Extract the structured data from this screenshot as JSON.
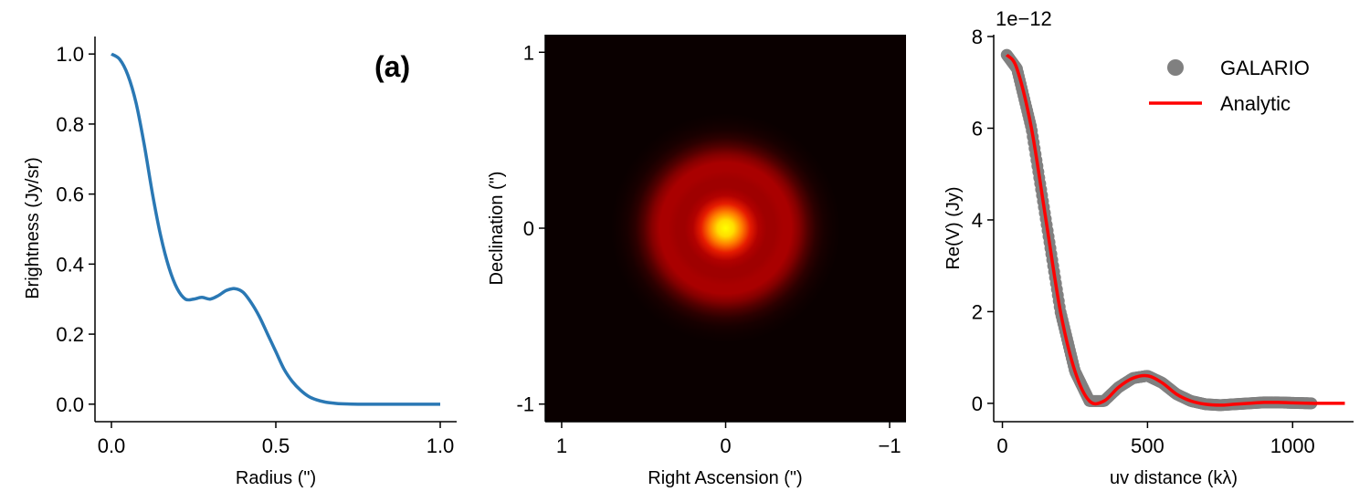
{
  "chart_data": [
    {
      "type": "line",
      "annotation": "(a)",
      "xlabel": "Radius (\")",
      "ylabel": "Brightness (Jy/sr)",
      "xlim": [
        -0.05,
        1.05
      ],
      "ylim": [
        -0.05,
        1.05
      ],
      "xticks": [
        {
          "value": 0.0,
          "label": "0.0"
        },
        {
          "value": 0.5,
          "label": "0.5"
        },
        {
          "value": 1.0,
          "label": "1.0"
        }
      ],
      "yticks": [
        {
          "value": 0.0,
          "label": "0.0"
        },
        {
          "value": 0.2,
          "label": "0.2"
        },
        {
          "value": 0.4,
          "label": "0.4"
        },
        {
          "value": 0.6,
          "label": "0.6"
        },
        {
          "value": 0.8,
          "label": "0.8"
        },
        {
          "value": 1.0,
          "label": "1.0"
        }
      ],
      "color": "#2a78b4",
      "series": [
        {
          "x": [
            0.0,
            0.025,
            0.05,
            0.075,
            0.1,
            0.125,
            0.15,
            0.175,
            0.2,
            0.225,
            0.25,
            0.275,
            0.3,
            0.325,
            0.35,
            0.375,
            0.4,
            0.425,
            0.45,
            0.475,
            0.5,
            0.525,
            0.55,
            0.575,
            0.6,
            0.625,
            0.65,
            0.675,
            0.7,
            0.75,
            0.8,
            0.9,
            1.0
          ],
          "y": [
            1.0,
            0.985,
            0.94,
            0.86,
            0.74,
            0.6,
            0.48,
            0.39,
            0.33,
            0.3,
            0.3,
            0.305,
            0.3,
            0.31,
            0.325,
            0.33,
            0.32,
            0.29,
            0.25,
            0.2,
            0.15,
            0.1,
            0.065,
            0.04,
            0.022,
            0.012,
            0.006,
            0.003,
            0.001,
            0.0,
            0.0,
            0.0,
            0.0
          ]
        }
      ]
    },
    {
      "type": "heatmap",
      "xlabel": "Right Ascension (\")",
      "ylabel": "Declination (\")",
      "xlim": [
        1.1,
        -1.1
      ],
      "ylim": [
        -1.1,
        1.1
      ],
      "xticks": [
        {
          "value": 1,
          "label": "1"
        },
        {
          "value": 0,
          "label": "0"
        },
        {
          "value": -1,
          "label": "−1"
        }
      ],
      "yticks": [
        {
          "value": 1,
          "label": "1"
        },
        {
          "value": 0,
          "label": "0"
        },
        {
          "value": -1,
          "label": "-1"
        }
      ],
      "colormap": [
        "#0a0000",
        "#5a0000",
        "#b00000",
        "#e61c00",
        "#ff5a00",
        "#ffa000",
        "#ffff00"
      ],
      "radial_profile": {
        "r": [
          0.0,
          0.05,
          0.1,
          0.15,
          0.2,
          0.25,
          0.3,
          0.35,
          0.4,
          0.45,
          0.5,
          0.55,
          0.6,
          0.65,
          0.7,
          0.8,
          1.6
        ],
        "brightness": [
          1.0,
          0.94,
          0.75,
          0.5,
          0.34,
          0.3,
          0.3,
          0.32,
          0.32,
          0.25,
          0.15,
          0.07,
          0.03,
          0.01,
          0.0,
          0.0,
          0.0
        ]
      }
    },
    {
      "type": "line",
      "xlabel": "uv distance (kλ)",
      "ylabel": "Re(V) (Jy)",
      "offset_label": "1e−12",
      "xlim": [
        -30,
        1210
      ],
      "ylim": [
        -0.4,
        8.0
      ],
      "xticks": [
        {
          "value": 0,
          "label": "0"
        },
        {
          "value": 500,
          "label": "500"
        },
        {
          "value": 1000,
          "label": "1000"
        }
      ],
      "yticks": [
        {
          "value": 0,
          "label": "0"
        },
        {
          "value": 2,
          "label": "2"
        },
        {
          "value": 4,
          "label": "4"
        },
        {
          "value": 6,
          "label": "6"
        },
        {
          "value": 8,
          "label": "8"
        }
      ],
      "legend_position": "top-right",
      "series": [
        {
          "name": "GALARIO",
          "style": "markers",
          "color": "#808080",
          "x": [
            15,
            50,
            100,
            150,
            200,
            250,
            300,
            350,
            400,
            450,
            500,
            550,
            600,
            650,
            700,
            750,
            800,
            850,
            900,
            950,
            1000,
            1065
          ],
          "y": [
            7.6,
            7.3,
            6.0,
            4.0,
            2.0,
            0.7,
            0.05,
            0.05,
            0.35,
            0.55,
            0.6,
            0.45,
            0.2,
            0.05,
            -0.02,
            -0.04,
            -0.02,
            0.0,
            0.02,
            0.02,
            0.01,
            0.0
          ]
        },
        {
          "name": "Analytic",
          "style": "line",
          "color": "#ff0000",
          "x": [
            15,
            50,
            100,
            150,
            200,
            250,
            300,
            350,
            400,
            450,
            500,
            550,
            600,
            650,
            700,
            750,
            800,
            850,
            900,
            950,
            1000,
            1065,
            1100,
            1180
          ],
          "y": [
            7.6,
            7.3,
            6.0,
            4.0,
            2.0,
            0.7,
            0.05,
            0.05,
            0.35,
            0.55,
            0.6,
            0.45,
            0.2,
            0.05,
            -0.02,
            -0.04,
            -0.02,
            0.0,
            0.02,
            0.02,
            0.01,
            0.0,
            0.0,
            0.0
          ]
        }
      ]
    }
  ]
}
